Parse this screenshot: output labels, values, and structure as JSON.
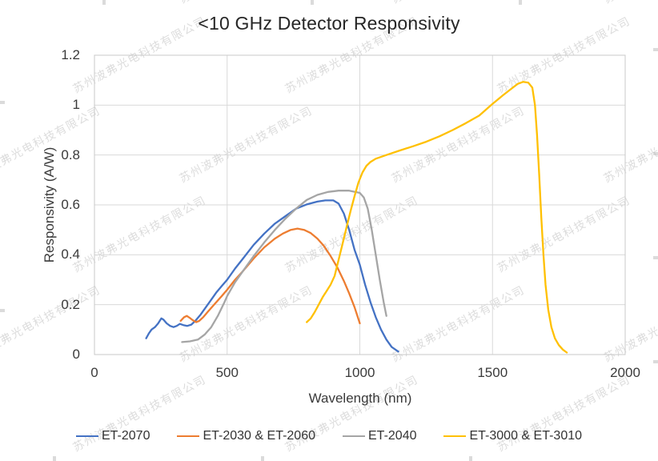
{
  "watermark": {
    "text": "苏州波弗光电科技有限公司"
  },
  "chart_data": {
    "type": "line",
    "title": "<10 GHz Detector Responsivity",
    "xlabel": "Wavelength (nm)",
    "ylabel": "Responsivity (A/W)",
    "xlim": [
      0,
      2000
    ],
    "ylim": [
      0,
      1.2
    ],
    "x_ticks": [
      0,
      500,
      1000,
      1500,
      2000
    ],
    "x_tick_labels": [
      "0",
      "500",
      "1000",
      "1500",
      "2000"
    ],
    "y_ticks": [
      0,
      0.2,
      0.4,
      0.6,
      0.8,
      1.0,
      1.2
    ],
    "y_tick_labels": [
      "0",
      "0.2",
      "0.4",
      "0.6",
      "0.8",
      "1",
      "1.2"
    ],
    "grid": true,
    "legend_position": "bottom",
    "gridline_color": "#d9d9d9",
    "border_color": "#c9c9c9",
    "series": [
      {
        "name": "ET-2070",
        "color": "#4472C4",
        "points": [
          [
            195,
            0.065
          ],
          [
            205,
            0.085
          ],
          [
            215,
            0.1
          ],
          [
            228,
            0.11
          ],
          [
            240,
            0.125
          ],
          [
            252,
            0.145
          ],
          [
            260,
            0.14
          ],
          [
            272,
            0.125
          ],
          [
            285,
            0.115
          ],
          [
            298,
            0.11
          ],
          [
            310,
            0.115
          ],
          [
            322,
            0.123
          ],
          [
            335,
            0.118
          ],
          [
            350,
            0.115
          ],
          [
            365,
            0.12
          ],
          [
            380,
            0.135
          ],
          [
            400,
            0.16
          ],
          [
            420,
            0.19
          ],
          [
            440,
            0.22
          ],
          [
            460,
            0.25
          ],
          [
            480,
            0.275
          ],
          [
            500,
            0.3
          ],
          [
            530,
            0.345
          ],
          [
            560,
            0.385
          ],
          [
            600,
            0.44
          ],
          [
            640,
            0.485
          ],
          [
            680,
            0.525
          ],
          [
            720,
            0.555
          ],
          [
            760,
            0.585
          ],
          [
            800,
            0.602
          ],
          [
            840,
            0.613
          ],
          [
            870,
            0.618
          ],
          [
            900,
            0.618
          ],
          [
            920,
            0.605
          ],
          [
            940,
            0.565
          ],
          [
            960,
            0.5
          ],
          [
            980,
            0.42
          ],
          [
            1000,
            0.36
          ],
          [
            1020,
            0.28
          ],
          [
            1040,
            0.21
          ],
          [
            1060,
            0.15
          ],
          [
            1080,
            0.1
          ],
          [
            1100,
            0.06
          ],
          [
            1120,
            0.03
          ],
          [
            1145,
            0.012
          ]
        ]
      },
      {
        "name": "ET-2030 & ET-2060",
        "color": "#ED7D31",
        "points": [
          [
            325,
            0.135
          ],
          [
            338,
            0.15
          ],
          [
            348,
            0.155
          ],
          [
            358,
            0.148
          ],
          [
            370,
            0.138
          ],
          [
            383,
            0.13
          ],
          [
            395,
            0.135
          ],
          [
            410,
            0.15
          ],
          [
            430,
            0.175
          ],
          [
            455,
            0.205
          ],
          [
            480,
            0.235
          ],
          [
            500,
            0.26
          ],
          [
            530,
            0.3
          ],
          [
            560,
            0.335
          ],
          [
            600,
            0.385
          ],
          [
            640,
            0.43
          ],
          [
            680,
            0.465
          ],
          [
            710,
            0.485
          ],
          [
            740,
            0.5
          ],
          [
            765,
            0.505
          ],
          [
            790,
            0.5
          ],
          [
            815,
            0.487
          ],
          [
            840,
            0.465
          ],
          [
            865,
            0.435
          ],
          [
            890,
            0.395
          ],
          [
            915,
            0.35
          ],
          [
            940,
            0.295
          ],
          [
            960,
            0.245
          ],
          [
            980,
            0.19
          ],
          [
            1000,
            0.125
          ]
        ]
      },
      {
        "name": "ET-2040",
        "color": "#A5A5A5",
        "points": [
          [
            330,
            0.05
          ],
          [
            360,
            0.053
          ],
          [
            390,
            0.06
          ],
          [
            415,
            0.08
          ],
          [
            440,
            0.11
          ],
          [
            465,
            0.155
          ],
          [
            490,
            0.21
          ],
          [
            500,
            0.235
          ],
          [
            530,
            0.29
          ],
          [
            560,
            0.335
          ],
          [
            600,
            0.395
          ],
          [
            640,
            0.45
          ],
          [
            680,
            0.5
          ],
          [
            720,
            0.545
          ],
          [
            760,
            0.585
          ],
          [
            800,
            0.62
          ],
          [
            840,
            0.64
          ],
          [
            880,
            0.652
          ],
          [
            920,
            0.657
          ],
          [
            960,
            0.657
          ],
          [
            1000,
            0.648
          ],
          [
            1015,
            0.63
          ],
          [
            1030,
            0.585
          ],
          [
            1045,
            0.5
          ],
          [
            1060,
            0.4
          ],
          [
            1075,
            0.3
          ],
          [
            1090,
            0.21
          ],
          [
            1100,
            0.155
          ]
        ]
      },
      {
        "name": "ET-3000 & ET-3010",
        "color": "#FFC000",
        "points": [
          [
            800,
            0.13
          ],
          [
            815,
            0.145
          ],
          [
            830,
            0.17
          ],
          [
            845,
            0.2
          ],
          [
            860,
            0.23
          ],
          [
            875,
            0.255
          ],
          [
            890,
            0.28
          ],
          [
            905,
            0.315
          ],
          [
            920,
            0.38
          ],
          [
            935,
            0.445
          ],
          [
            950,
            0.51
          ],
          [
            965,
            0.575
          ],
          [
            980,
            0.635
          ],
          [
            995,
            0.69
          ],
          [
            1010,
            0.73
          ],
          [
            1025,
            0.757
          ],
          [
            1040,
            0.772
          ],
          [
            1060,
            0.785
          ],
          [
            1100,
            0.8
          ],
          [
            1150,
            0.818
          ],
          [
            1200,
            0.835
          ],
          [
            1250,
            0.853
          ],
          [
            1300,
            0.875
          ],
          [
            1350,
            0.9
          ],
          [
            1400,
            0.928
          ],
          [
            1450,
            0.958
          ],
          [
            1500,
            1.005
          ],
          [
            1540,
            1.04
          ],
          [
            1570,
            1.065
          ],
          [
            1595,
            1.085
          ],
          [
            1615,
            1.093
          ],
          [
            1635,
            1.09
          ],
          [
            1650,
            1.07
          ],
          [
            1660,
            1.0
          ],
          [
            1668,
            0.88
          ],
          [
            1676,
            0.72
          ],
          [
            1684,
            0.55
          ],
          [
            1692,
            0.4
          ],
          [
            1700,
            0.28
          ],
          [
            1710,
            0.18
          ],
          [
            1722,
            0.11
          ],
          [
            1735,
            0.065
          ],
          [
            1750,
            0.038
          ],
          [
            1765,
            0.02
          ],
          [
            1780,
            0.008
          ]
        ]
      }
    ]
  }
}
